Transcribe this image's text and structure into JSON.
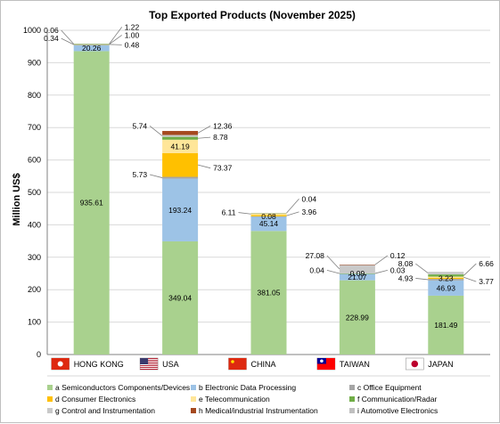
{
  "chart_data": {
    "type": "bar",
    "stacked": true,
    "title": "Top Exported Products (November 2025)",
    "ylabel": "Million US$",
    "xlabel": "",
    "ylim": [
      0,
      1000
    ],
    "yticks": [
      0,
      100,
      200,
      300,
      400,
      500,
      600,
      700,
      800,
      900,
      1000
    ],
    "grid": true,
    "legend_position": "bottom",
    "categories": [
      "HONG KONG",
      "USA",
      "CHINA",
      "TAIWAN",
      "JAPAN"
    ],
    "category_flags": [
      "hong-kong-flag-icon",
      "usa-flag-icon",
      "china-flag-icon",
      "taiwan-flag-icon",
      "japan-flag-icon"
    ],
    "series": [
      {
        "key": "a",
        "name": "a Semiconductors Components/Devices",
        "color": "#a9d18e",
        "values": [
          935.61,
          349.04,
          381.05,
          228.99,
          181.49
        ]
      },
      {
        "key": "b",
        "name": "b Electronic Data Processing",
        "color": "#9dc3e6",
        "values": [
          20.26,
          193.24,
          45.14,
          21.07,
          46.93
        ]
      },
      {
        "key": "c",
        "name": "c Office Equipment",
        "color": "#a5a5a5",
        "values": [
          0.34,
          5.73,
          0.08,
          0.04,
          4.93
        ]
      },
      {
        "key": "d",
        "name": "d Consumer Electronics",
        "color": "#ffc000",
        "values": [
          0.48,
          73.37,
          3.96,
          0.09,
          3.23
        ]
      },
      {
        "key": "e",
        "name": "e Telecommunication",
        "color": "#ffe699",
        "values": [
          1.0,
          41.19,
          6.11,
          0.03,
          3.77
        ]
      },
      {
        "key": "f",
        "name": "f Communication/Radar",
        "color": "#70ad47",
        "values": [
          0.06,
          8.78,
          0.04,
          0.04,
          6.66
        ]
      },
      {
        "key": "g",
        "name": "g Control and Instrumentation",
        "color": "#c9c9c9",
        "values": [
          1.22,
          5.74,
          0.04,
          27.08,
          8.08
        ]
      },
      {
        "key": "h",
        "name": "h Medical/industrial Instrumentation",
        "color": "#a5491f",
        "values": [
          0.0,
          12.36,
          0.0,
          0.12,
          0.0
        ]
      },
      {
        "key": "i",
        "name": "i Automotive Electronics",
        "color": "#bfbfbf",
        "values": [
          0.0,
          0.0,
          0.0,
          0.0,
          0.0
        ]
      }
    ],
    "data_labels": [
      {
        "cat": 0,
        "text": "935.61",
        "series": "a",
        "inside": true
      },
      {
        "cat": 0,
        "text": "20.26",
        "series": "b",
        "inside": true
      },
      {
        "cat": 0,
        "text": "0.06",
        "series": "f",
        "side": "left",
        "y": 1000
      },
      {
        "cat": 0,
        "text": "0.34",
        "series": "c",
        "side": "left",
        "y": 975
      },
      {
        "cat": 0,
        "text": "1.22",
        "series": "g",
        "side": "right",
        "y": 1010
      },
      {
        "cat": 0,
        "text": "1.00",
        "series": "e",
        "side": "right",
        "y": 985
      },
      {
        "cat": 0,
        "text": "0.48",
        "series": "d",
        "side": "right",
        "y": 955
      },
      {
        "cat": 1,
        "text": "349.04",
        "series": "a",
        "inside": true
      },
      {
        "cat": 1,
        "text": "193.24",
        "series": "b",
        "inside": true
      },
      {
        "cat": 1,
        "text": "41.19",
        "series": "e",
        "inside": true
      },
      {
        "cat": 1,
        "text": "5.74",
        "series": "g",
        "side": "left",
        "y": 705
      },
      {
        "cat": 1,
        "text": "12.36",
        "series": "h",
        "side": "right",
        "y": 705
      },
      {
        "cat": 1,
        "text": "8.78",
        "series": "f",
        "side": "right",
        "y": 670
      },
      {
        "cat": 1,
        "text": "73.37",
        "series": "d",
        "side": "right",
        "y": 575
      },
      {
        "cat": 1,
        "text": "5.73",
        "series": "c",
        "side": "left",
        "y": 555
      },
      {
        "cat": 2,
        "text": "381.05",
        "series": "a",
        "inside": true
      },
      {
        "cat": 2,
        "text": "45.14",
        "series": "b",
        "inside": true
      },
      {
        "cat": 2,
        "text": "0.08",
        "series": "c",
        "inside": true
      },
      {
        "cat": 2,
        "text": "0.04",
        "series": "g",
        "side": "right",
        "y": 480
      },
      {
        "cat": 2,
        "text": "6.11",
        "series": "e",
        "side": "left",
        "y": 438
      },
      {
        "cat": 2,
        "text": "3.96",
        "series": "d",
        "side": "right",
        "y": 440
      },
      {
        "cat": 3,
        "text": "228.99",
        "series": "a",
        "inside": true
      },
      {
        "cat": 3,
        "text": "21.07",
        "series": "b",
        "inside": true
      },
      {
        "cat": 3,
        "text": "0.09",
        "series": "d",
        "inside": true
      },
      {
        "cat": 3,
        "text": "27.08",
        "series": "g",
        "side": "left",
        "y": 305
      },
      {
        "cat": 3,
        "text": "0.12",
        "series": "h",
        "side": "right",
        "y": 305
      },
      {
        "cat": 3,
        "text": "0.04",
        "series": "c",
        "side": "left",
        "y": 260
      },
      {
        "cat": 3,
        "text": "0.03",
        "series": "e",
        "side": "right",
        "y": 260
      },
      {
        "cat": 4,
        "text": "181.49",
        "series": "a",
        "inside": true
      },
      {
        "cat": 4,
        "text": "46.93",
        "series": "b",
        "inside": true
      },
      {
        "cat": 4,
        "text": "3.23",
        "series": "d",
        "inside": true
      },
      {
        "cat": 4,
        "text": "8.08",
        "series": "g",
        "side": "left",
        "y": 280
      },
      {
        "cat": 4,
        "text": "6.66",
        "series": "f",
        "side": "right",
        "y": 280
      },
      {
        "cat": 4,
        "text": "4.93",
        "series": "c",
        "side": "left",
        "y": 235
      },
      {
        "cat": 4,
        "text": "3.77",
        "series": "e",
        "side": "right",
        "y": 225
      }
    ]
  }
}
